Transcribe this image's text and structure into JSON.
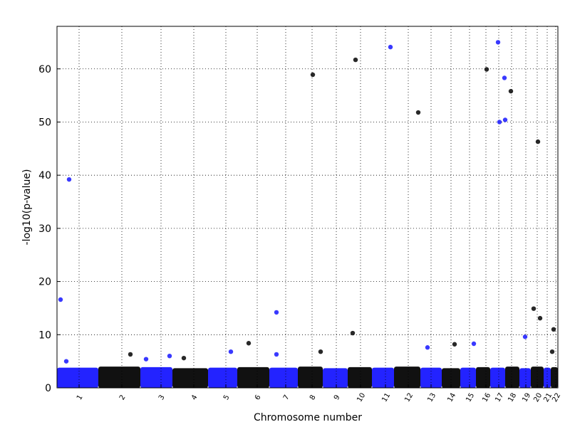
{
  "chart_data": {
    "type": "manhattan",
    "x_label": "Chromosome number",
    "y_label": "-log10(p-value)",
    "xlim": [
      0,
      703
    ],
    "ylim": [
      0,
      68
    ],
    "yticks": [
      0,
      10,
      20,
      30,
      40,
      50,
      60
    ],
    "xticks": [
      {
        "value": 31,
        "label": "1"
      },
      {
        "value": 91,
        "label": "2"
      },
      {
        "value": 146,
        "label": "3"
      },
      {
        "value": 192,
        "label": "4"
      },
      {
        "value": 237,
        "label": "5"
      },
      {
        "value": 281,
        "label": "6"
      },
      {
        "value": 321,
        "label": "7"
      },
      {
        "value": 358,
        "label": "8"
      },
      {
        "value": 392,
        "label": "9"
      },
      {
        "value": 426,
        "label": "10"
      },
      {
        "value": 461,
        "label": "11"
      },
      {
        "value": 493,
        "label": "12"
      },
      {
        "value": 525,
        "label": "13"
      },
      {
        "value": 553,
        "label": "14"
      },
      {
        "value": 579,
        "label": "15"
      },
      {
        "value": 602,
        "label": "16"
      },
      {
        "value": 620,
        "label": "17"
      },
      {
        "value": 638,
        "label": "18"
      },
      {
        "value": 658,
        "label": "19"
      },
      {
        "value": 674,
        "label": "20"
      },
      {
        "value": 688,
        "label": "21"
      },
      {
        "value": 700,
        "label": "22"
      }
    ],
    "grid": true,
    "colors": [
      "#2323ff",
      "#111111"
    ],
    "chromosomes": {
      "starts": [
        0,
        58,
        117,
        162,
        212,
        253,
        298,
        338,
        373,
        408,
        442,
        473,
        510,
        540,
        566,
        588,
        608,
        629,
        649,
        665,
        683,
        693
      ],
      "ends": [
        58,
        117,
        162,
        212,
        253,
        298,
        338,
        373,
        408,
        442,
        473,
        510,
        540,
        566,
        588,
        608,
        629,
        649,
        665,
        683,
        693,
        703
      ],
      "band_top": [
        3.8,
        4.0,
        3.9,
        3.7,
        3.8,
        3.9,
        3.8,
        4.0,
        3.7,
        3.9,
        3.8,
        4.0,
        3.8,
        3.7,
        3.8,
        3.9,
        3.8,
        4.0,
        3.7,
        4.0,
        3.8,
        3.9
      ]
    },
    "series": [
      {
        "color": "#2323ff",
        "x": [
          5,
          17,
          468,
          619,
          628,
          621,
          629,
          308,
          585,
          657,
          520,
          244,
          308,
          158,
          13,
          125
        ],
        "values": [
          16.6,
          39.2,
          64.1,
          65.0,
          58.3,
          50.0,
          50.4,
          14.2,
          8.3,
          9.6,
          7.6,
          6.8,
          6.3,
          6.0,
          5.0,
          5.4
        ]
      },
      {
        "color": "#111111",
        "x": [
          359,
          419,
          507,
          603,
          637,
          675,
          415,
          669,
          678,
          697,
          269,
          558,
          370,
          103,
          695,
          178
        ],
        "values": [
          58.9,
          61.7,
          51.8,
          59.9,
          55.8,
          46.3,
          10.3,
          14.9,
          13.1,
          11.0,
          8.4,
          8.2,
          6.8,
          6.3,
          6.8,
          5.6
        ]
      }
    ]
  }
}
